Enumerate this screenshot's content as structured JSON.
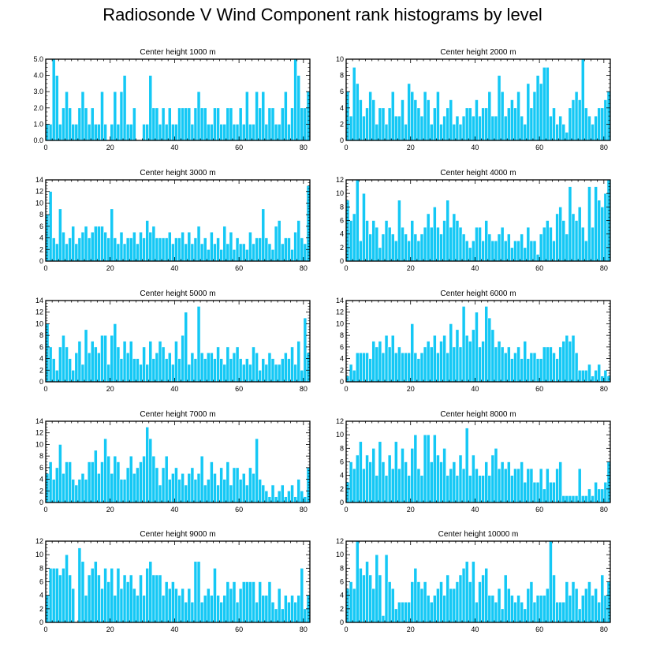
{
  "title": "Radiosonde V Wind Component rank histograms by level",
  "colors": {
    "bar": "#14c8f5",
    "bar_edge": "#ffffff",
    "axis": "#000000"
  },
  "chart_data": [
    {
      "type": "bar",
      "title": "Center height 1000 m",
      "xlim": [
        0,
        82
      ],
      "xticks": [
        0,
        20,
        40,
        60,
        80
      ],
      "ylim": [
        0,
        5
      ],
      "yticks": [
        "0.0",
        "1.0",
        "2.0",
        "3.0",
        "4.0",
        "5.0"
      ],
      "values": [
        1,
        1,
        5,
        4,
        1,
        2,
        3,
        2,
        1,
        1,
        2,
        3,
        2,
        1,
        2,
        1,
        1,
        3,
        1,
        0,
        1,
        3,
        1,
        3,
        4,
        1,
        1,
        2,
        0,
        0,
        1,
        1,
        4,
        2,
        2,
        1,
        2,
        1,
        2,
        1,
        1,
        2,
        2,
        2,
        2,
        1,
        2,
        3,
        2,
        2,
        1,
        1,
        2,
        2,
        1,
        1,
        2,
        2,
        1,
        1,
        2,
        1,
        3,
        1,
        1,
        3,
        2,
        3,
        1,
        2,
        2,
        1,
        1,
        2,
        3,
        1,
        2,
        5,
        4,
        2,
        2,
        3
      ]
    },
    {
      "type": "bar",
      "title": "Center height 2000 m",
      "xlim": [
        0,
        82
      ],
      "xticks": [
        0,
        20,
        40,
        60,
        80
      ],
      "ylim": [
        0,
        10
      ],
      "yticks": [
        "0",
        "2",
        "4",
        "6",
        "8",
        "10"
      ],
      "values": [
        6,
        3,
        9,
        7,
        5,
        3,
        4,
        6,
        5,
        2,
        4,
        4,
        2,
        4,
        6,
        3,
        3,
        5,
        2,
        7,
        6,
        5,
        4,
        3,
        6,
        5,
        2,
        4,
        6,
        2,
        3,
        4,
        5,
        2,
        3,
        2,
        3,
        4,
        4,
        3,
        5,
        3,
        4,
        4,
        6,
        3,
        3,
        8,
        6,
        3,
        4,
        5,
        4,
        6,
        3,
        2,
        7,
        4,
        6,
        8,
        7,
        9,
        9,
        3,
        4,
        2,
        3,
        2,
        1,
        4,
        5,
        6,
        5,
        10,
        4,
        3,
        2,
        3,
        4,
        4,
        5,
        6
      ]
    },
    {
      "type": "bar",
      "title": "Center height 3000 m",
      "xlim": [
        0,
        82
      ],
      "xticks": [
        0,
        20,
        40,
        60,
        80
      ],
      "ylim": [
        0,
        14
      ],
      "yticks": [
        "0",
        "2",
        "4",
        "6",
        "8",
        "10",
        "12",
        "14"
      ],
      "values": [
        8,
        12,
        4,
        3,
        9,
        5,
        3,
        4,
        6,
        3,
        4,
        5,
        6,
        4,
        5,
        6,
        6,
        6,
        5,
        4,
        9,
        4,
        3,
        5,
        3,
        4,
        4,
        5,
        3,
        5,
        4,
        7,
        5,
        6,
        4,
        4,
        4,
        4,
        5,
        3,
        4,
        4,
        5,
        3,
        5,
        3,
        4,
        6,
        3,
        4,
        2,
        5,
        3,
        4,
        2,
        6,
        3,
        5,
        2,
        4,
        3,
        3,
        2,
        5,
        3,
        4,
        4,
        9,
        4,
        3,
        2,
        6,
        7,
        3,
        4,
        4,
        2,
        5,
        7,
        4,
        3,
        13
      ]
    },
    {
      "type": "bar",
      "title": "Center height 4000 m",
      "xlim": [
        0,
        82
      ],
      "xticks": [
        0,
        20,
        40,
        60,
        80
      ],
      "ylim": [
        0,
        12
      ],
      "yticks": [
        "0",
        "2",
        "4",
        "6",
        "8",
        "10",
        "12"
      ],
      "values": [
        9,
        6,
        7,
        12,
        3,
        10,
        6,
        4,
        6,
        5,
        2,
        4,
        6,
        5,
        4,
        3,
        9,
        5,
        4,
        3,
        6,
        4,
        3,
        4,
        5,
        7,
        5,
        8,
        5,
        4,
        6,
        9,
        5,
        7,
        6,
        5,
        4,
        3,
        2,
        3,
        5,
        5,
        3,
        6,
        4,
        3,
        3,
        4,
        5,
        3,
        4,
        2,
        3,
        3,
        4,
        2,
        5,
        3,
        3,
        1,
        4,
        5,
        6,
        5,
        3,
        7,
        8,
        6,
        4,
        11,
        7,
        6,
        8,
        5,
        3,
        11,
        5,
        11,
        9,
        8,
        10,
        12
      ]
    },
    {
      "type": "bar",
      "title": "Center height 5000 m",
      "xlim": [
        0,
        82
      ],
      "xticks": [
        0,
        20,
        40,
        60,
        80
      ],
      "ylim": [
        0,
        14
      ],
      "yticks": [
        "0",
        "2",
        "4",
        "6",
        "8",
        "10",
        "12",
        "14"
      ],
      "values": [
        10,
        6,
        4,
        2,
        6,
        8,
        6,
        4,
        2,
        5,
        7,
        3,
        9,
        5,
        7,
        6,
        5,
        8,
        8,
        3,
        8,
        10,
        6,
        4,
        7,
        5,
        7,
        4,
        4,
        3,
        6,
        3,
        7,
        4,
        5,
        7,
        6,
        4,
        5,
        3,
        7,
        4,
        8,
        12,
        3,
        5,
        4,
        13,
        5,
        4,
        5,
        5,
        4,
        6,
        4,
        3,
        6,
        4,
        5,
        6,
        4,
        3,
        4,
        3,
        6,
        5,
        2,
        4,
        3,
        5,
        4,
        3,
        3,
        4,
        5,
        4,
        6,
        3,
        7,
        2,
        11,
        5
      ]
    },
    {
      "type": "bar",
      "title": "Center height 6000 m",
      "xlim": [
        0,
        82
      ],
      "xticks": [
        0,
        20,
        40,
        60,
        80
      ],
      "ylim": [
        0,
        14
      ],
      "yticks": [
        "0",
        "2",
        "4",
        "6",
        "8",
        "10",
        "12",
        "14"
      ],
      "values": [
        1,
        3,
        2,
        5,
        5,
        5,
        5,
        4,
        7,
        6,
        7,
        5,
        8,
        6,
        8,
        5,
        6,
        5,
        5,
        5,
        10,
        5,
        4,
        5,
        6,
        7,
        6,
        8,
        5,
        7,
        8,
        5,
        10,
        6,
        9,
        6,
        13,
        8,
        7,
        9,
        12,
        6,
        7,
        13,
        11,
        9,
        6,
        7,
        6,
        5,
        6,
        4,
        5,
        6,
        4,
        7,
        4,
        5,
        5,
        4,
        4,
        6,
        6,
        6,
        5,
        4,
        6,
        7,
        8,
        7,
        8,
        5,
        2,
        2,
        2,
        3,
        1,
        2,
        3,
        1,
        2,
        1
      ]
    },
    {
      "type": "bar",
      "title": "Center height 7000 m",
      "xlim": [
        0,
        82
      ],
      "xticks": [
        0,
        20,
        40,
        60,
        80
      ],
      "ylim": [
        0,
        14
      ],
      "yticks": [
        "0",
        "2",
        "4",
        "6",
        "8",
        "10",
        "12",
        "14"
      ],
      "values": [
        5,
        7,
        4,
        6,
        10,
        5,
        7,
        7,
        4,
        3,
        4,
        5,
        4,
        7,
        7,
        9,
        5,
        7,
        11,
        8,
        5,
        8,
        7,
        4,
        4,
        6,
        8,
        5,
        6,
        7,
        8,
        13,
        11,
        8,
        6,
        3,
        6,
        8,
        4,
        5,
        6,
        4,
        5,
        3,
        5,
        6,
        4,
        5,
        8,
        3,
        4,
        7,
        5,
        3,
        6,
        4,
        7,
        3,
        6,
        6,
        4,
        5,
        3,
        6,
        5,
        11,
        4,
        3,
        2,
        1,
        3,
        1,
        2,
        3,
        1,
        2,
        3,
        1,
        4,
        2,
        1,
        6
      ]
    },
    {
      "type": "bar",
      "title": "Center height 8000 m",
      "xlim": [
        0,
        82
      ],
      "xticks": [
        0,
        20,
        40,
        60,
        80
      ],
      "ylim": [
        0,
        12
      ],
      "yticks": [
        "0",
        "2",
        "4",
        "6",
        "8",
        "10",
        "12"
      ],
      "values": [
        3,
        6,
        5,
        7,
        9,
        5,
        7,
        6,
        8,
        4,
        9,
        6,
        4,
        7,
        5,
        9,
        5,
        8,
        6,
        4,
        8,
        10,
        5,
        4,
        10,
        10,
        6,
        10,
        7,
        6,
        8,
        4,
        5,
        6,
        4,
        7,
        5,
        11,
        4,
        7,
        5,
        4,
        4,
        6,
        4,
        7,
        8,
        5,
        6,
        5,
        6,
        4,
        5,
        5,
        6,
        3,
        5,
        5,
        3,
        3,
        5,
        2,
        5,
        3,
        3,
        5,
        6,
        1,
        1,
        1,
        1,
        1,
        5,
        1,
        1,
        2,
        1,
        3,
        2,
        2,
        3,
        6
      ]
    },
    {
      "type": "bar",
      "title": "Center height 9000 m",
      "xlim": [
        0,
        82
      ],
      "xticks": [
        0,
        20,
        40,
        60,
        80
      ],
      "ylim": [
        0,
        12
      ],
      "yticks": [
        "0",
        "2",
        "4",
        "6",
        "8",
        "10",
        "12"
      ],
      "values": [
        4,
        8,
        8,
        8,
        7,
        8,
        10,
        7,
        5,
        0,
        11,
        9,
        4,
        7,
        8,
        9,
        7,
        5,
        8,
        6,
        8,
        4,
        8,
        5,
        7,
        6,
        7,
        5,
        4,
        7,
        4,
        8,
        9,
        7,
        7,
        7,
        4,
        6,
        5,
        6,
        5,
        4,
        5,
        3,
        5,
        3,
        9,
        9,
        3,
        4,
        5,
        4,
        8,
        4,
        3,
        4,
        6,
        5,
        6,
        3,
        5,
        6,
        6,
        6,
        6,
        3,
        6,
        4,
        4,
        6,
        3,
        2,
        5,
        2,
        4,
        3,
        4,
        3,
        4,
        8,
        2,
        4
      ]
    },
    {
      "type": "bar",
      "title": "Center height 10000 m",
      "xlim": [
        0,
        82
      ],
      "xticks": [
        0,
        20,
        40,
        60,
        80
      ],
      "ylim": [
        0,
        12
      ],
      "yticks": [
        "0",
        "2",
        "4",
        "6",
        "8",
        "10",
        "12"
      ],
      "values": [
        5,
        6,
        5,
        12,
        8,
        7,
        9,
        7,
        5,
        10,
        7,
        1,
        10,
        6,
        5,
        2,
        3,
        3,
        3,
        3,
        6,
        8,
        6,
        5,
        6,
        4,
        3,
        4,
        5,
        6,
        4,
        7,
        5,
        5,
        6,
        7,
        8,
        9,
        6,
        9,
        3,
        6,
        7,
        8,
        4,
        4,
        3,
        5,
        2,
        7,
        5,
        4,
        3,
        4,
        3,
        2,
        5,
        6,
        3,
        4,
        4,
        4,
        5,
        12,
        7,
        3,
        3,
        3,
        6,
        4,
        6,
        5,
        2,
        4,
        5,
        6,
        4,
        5,
        3,
        7,
        4,
        6
      ]
    }
  ]
}
